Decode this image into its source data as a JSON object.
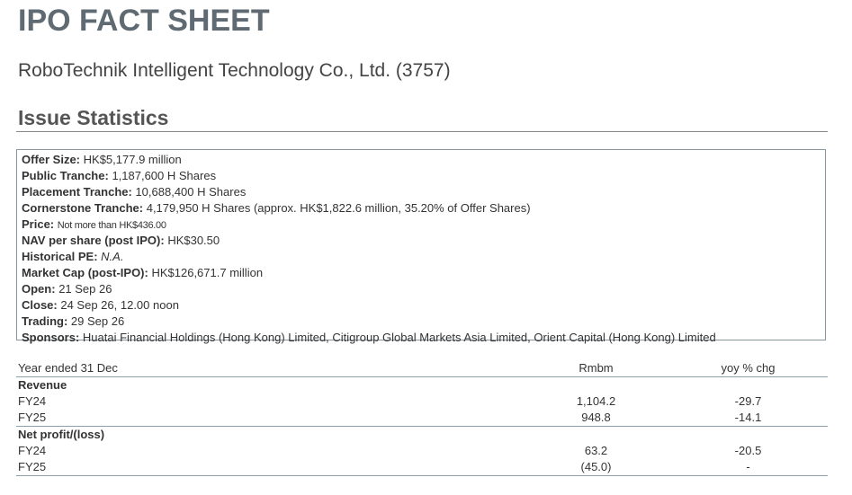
{
  "header": {
    "title": "IPO FACT SHEET",
    "subtitle": "RoboTechnik Intelligent Technology Co., Ltd. (3757)"
  },
  "section": {
    "title": "Issue Statistics"
  },
  "facts": [
    {
      "label": "Offer Size:",
      "value": "HK$5,177.9 million"
    },
    {
      "label": "Public Tranche:",
      "value": "1,187,600 H Shares"
    },
    {
      "label": "Placement Tranche:",
      "value": "10,688,400 H Shares"
    },
    {
      "label": "Cornerstone Tranche:",
      "value": "4,179,950 H Shares (approx. HK$1,822.6 million, 35.20% of Offer Shares)"
    },
    {
      "label": "Price:",
      "value": "Not more than HK$436.00"
    },
    {
      "label": "NAV per share (post IPO):",
      "value": "HK$30.50"
    },
    {
      "label": "Historical PE:",
      "value": "N.A."
    },
    {
      "label": "Market Cap (post-IPO):",
      "value": "HK$126,671.7 million"
    },
    {
      "label": "Open:",
      "value": "21 Sep 26"
    },
    {
      "label": "Close:",
      "value": "24 Sep 26, 12.00 noon"
    },
    {
      "label": "Trading:",
      "value": "29 Sep 26"
    },
    {
      "label": "Sponsors:",
      "value": "Huatai Financial Holdings (Hong Kong) Limited, Citigroup Global Markets Asia Limited, Orient Capital (Hong Kong) Limited"
    }
  ],
  "table": {
    "columns": [
      "Year ended 31 Dec",
      "Rmbm",
      "yoy % chg"
    ],
    "groups": [
      {
        "name": "Revenue",
        "rows": [
          [
            "FY24",
            "1,104.2",
            "-29.7"
          ],
          [
            "FY25",
            "948.8",
            "-14.1"
          ]
        ]
      },
      {
        "name": "Net profit/(loss)",
        "rows": [
          [
            "FY24",
            "63.2",
            "-20.5"
          ],
          [
            "FY25",
            "(45.0)",
            "-"
          ]
        ]
      }
    ]
  }
}
